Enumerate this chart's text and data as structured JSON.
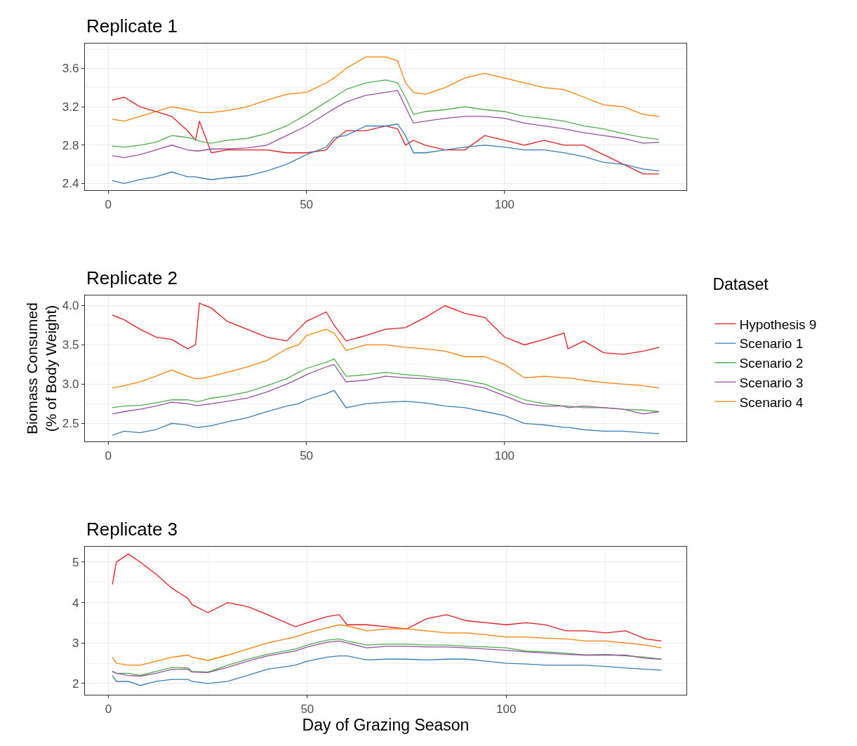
{
  "chart_data": [
    {
      "type": "line",
      "title": "Replicate 1",
      "legend_title": "Dataset",
      "legend": "right",
      "grid": true,
      "x": [
        1,
        4,
        8,
        12,
        16,
        20,
        22,
        23,
        26,
        30,
        35,
        40,
        45,
        50,
        55,
        57,
        60,
        65,
        70,
        73,
        75,
        77,
        80,
        85,
        90,
        95,
        100,
        105,
        110,
        115,
        120,
        125,
        130,
        135,
        139
      ],
      "xlim": [
        -5.9,
        145.9
      ],
      "xticks": [
        0,
        50,
        100
      ],
      "ylim": [
        2.33,
        3.86
      ],
      "yticks": [
        2.4,
        2.8,
        3.2,
        3.6
      ],
      "series": [
        {
          "name": "Hypothesis 9",
          "color": "#e41a1c",
          "values": [
            3.27,
            3.3,
            3.2,
            3.15,
            3.1,
            2.95,
            2.85,
            3.05,
            2.72,
            2.75,
            2.75,
            2.75,
            2.72,
            2.72,
            2.75,
            2.85,
            2.95,
            2.95,
            3.0,
            2.97,
            2.8,
            2.85,
            2.8,
            2.75,
            2.75,
            2.9,
            2.85,
            2.8,
            2.85,
            2.8,
            2.8,
            2.7,
            2.6,
            2.5,
            2.5
          ]
        },
        {
          "name": "Scenario 1",
          "color": "#377eb8",
          "values": [
            2.43,
            2.4,
            2.44,
            2.47,
            2.52,
            2.47,
            2.47,
            2.46,
            2.44,
            2.46,
            2.48,
            2.53,
            2.6,
            2.7,
            2.78,
            2.88,
            2.9,
            3.0,
            3.0,
            3.02,
            2.9,
            2.72,
            2.72,
            2.75,
            2.78,
            2.8,
            2.78,
            2.75,
            2.75,
            2.72,
            2.68,
            2.62,
            2.6,
            2.55,
            2.53
          ]
        },
        {
          "name": "Scenario 2",
          "color": "#4daf4a",
          "values": [
            2.79,
            2.78,
            2.8,
            2.83,
            2.9,
            2.88,
            2.86,
            2.84,
            2.82,
            2.85,
            2.87,
            2.92,
            3.0,
            3.12,
            3.25,
            3.3,
            3.38,
            3.45,
            3.48,
            3.45,
            3.3,
            3.12,
            3.15,
            3.17,
            3.2,
            3.17,
            3.15,
            3.1,
            3.08,
            3.05,
            3.0,
            2.97,
            2.92,
            2.88,
            2.86
          ]
        },
        {
          "name": "Scenario 3",
          "color": "#984ea3",
          "values": [
            2.69,
            2.67,
            2.7,
            2.75,
            2.8,
            2.75,
            2.74,
            2.74,
            2.76,
            2.76,
            2.77,
            2.8,
            2.9,
            3.0,
            3.13,
            3.18,
            3.25,
            3.32,
            3.35,
            3.37,
            3.2,
            3.03,
            3.05,
            3.08,
            3.1,
            3.1,
            3.08,
            3.03,
            3.0,
            2.97,
            2.93,
            2.9,
            2.87,
            2.82,
            2.83
          ]
        },
        {
          "name": "Scenario 4",
          "color": "#ff7f00",
          "values": [
            3.07,
            3.05,
            3.1,
            3.15,
            3.2,
            3.17,
            3.15,
            3.14,
            3.14,
            3.16,
            3.2,
            3.27,
            3.33,
            3.35,
            3.45,
            3.5,
            3.6,
            3.72,
            3.72,
            3.68,
            3.45,
            3.35,
            3.33,
            3.4,
            3.5,
            3.55,
            3.5,
            3.45,
            3.4,
            3.38,
            3.3,
            3.22,
            3.2,
            3.12,
            3.1
          ]
        }
      ]
    },
    {
      "type": "line",
      "title": "Replicate 2",
      "ylabel": "Biomass Consumed\n(% of Body Weight)",
      "legend": "right",
      "grid": true,
      "x": [
        1,
        4,
        8,
        12,
        16,
        20,
        22,
        23,
        26,
        30,
        35,
        40,
        45,
        48,
        50,
        55,
        57,
        60,
        65,
        70,
        75,
        80,
        85,
        90,
        95,
        100,
        105,
        110,
        115,
        116,
        120,
        125,
        130,
        135,
        139
      ],
      "xlim": [
        -5.9,
        145.9
      ],
      "xticks": [
        0,
        50,
        100
      ],
      "ylim": [
        2.27,
        4.13
      ],
      "yticks": [
        2.5,
        {
          "value": 3,
          "label": "3.0"
        },
        3.5,
        {
          "value": 4,
          "label": "4.0"
        }
      ],
      "series": [
        {
          "name": "Hypothesis 9",
          "color": "#e41a1c",
          "values": [
            3.88,
            3.82,
            3.7,
            3.6,
            3.57,
            3.45,
            3.5,
            4.03,
            3.97,
            3.8,
            3.7,
            3.6,
            3.55,
            3.7,
            3.8,
            3.92,
            3.75,
            3.55,
            3.62,
            3.7,
            3.72,
            3.85,
            4.0,
            3.9,
            3.85,
            3.6,
            3.5,
            3.57,
            3.65,
            3.45,
            3.55,
            3.4,
            3.38,
            3.42,
            3.47
          ]
        },
        {
          "name": "Scenario 1",
          "color": "#377eb8",
          "values": [
            2.35,
            2.4,
            2.38,
            2.42,
            2.5,
            2.48,
            2.45,
            2.45,
            2.47,
            2.52,
            2.57,
            2.65,
            2.72,
            2.75,
            2.8,
            2.88,
            2.92,
            2.7,
            2.75,
            2.77,
            2.78,
            2.76,
            2.72,
            2.7,
            2.65,
            2.6,
            2.5,
            2.48,
            2.45,
            2.45,
            2.42,
            2.4,
            2.4,
            2.38,
            2.37
          ]
        },
        {
          "name": "Scenario 2",
          "color": "#4daf4a",
          "values": [
            2.7,
            2.72,
            2.73,
            2.76,
            2.8,
            2.8,
            2.78,
            2.78,
            2.82,
            2.85,
            2.9,
            2.98,
            3.07,
            3.15,
            3.2,
            3.28,
            3.32,
            3.1,
            3.12,
            3.15,
            3.12,
            3.1,
            3.07,
            3.05,
            3.0,
            2.9,
            2.8,
            2.75,
            2.72,
            2.72,
            2.7,
            2.7,
            2.68,
            2.67,
            2.65
          ]
        },
        {
          "name": "Scenario 3",
          "color": "#984ea3",
          "values": [
            2.62,
            2.65,
            2.68,
            2.72,
            2.77,
            2.75,
            2.73,
            2.73,
            2.75,
            2.78,
            2.82,
            2.9,
            3.0,
            3.07,
            3.12,
            3.22,
            3.25,
            3.03,
            3.05,
            3.1,
            3.08,
            3.07,
            3.05,
            3.0,
            2.95,
            2.85,
            2.75,
            2.72,
            2.72,
            2.7,
            2.72,
            2.7,
            2.68,
            2.62,
            2.65
          ]
        },
        {
          "name": "Scenario 4",
          "color": "#ff7f00",
          "values": [
            2.95,
            2.98,
            3.03,
            3.1,
            3.18,
            3.1,
            3.07,
            3.07,
            3.1,
            3.15,
            3.22,
            3.3,
            3.45,
            3.5,
            3.62,
            3.7,
            3.65,
            3.43,
            3.5,
            3.5,
            3.47,
            3.45,
            3.42,
            3.35,
            3.35,
            3.25,
            3.08,
            3.1,
            3.08,
            3.08,
            3.05,
            3.02,
            3.0,
            2.98,
            2.95
          ]
        }
      ]
    },
    {
      "type": "line",
      "title": "Replicate 3",
      "xlabel": "Day of Grazing Season",
      "legend": "right",
      "grid": true,
      "x": [
        1,
        2,
        5,
        8,
        12,
        16,
        20,
        21,
        25,
        30,
        35,
        40,
        47,
        50,
        55,
        58,
        60,
        65,
        70,
        75,
        80,
        85,
        90,
        95,
        100,
        105,
        110,
        115,
        120,
        125,
        130,
        135,
        139
      ],
      "xlim": [
        -5.9,
        145.3
      ],
      "xticks": [
        0,
        50,
        100
      ],
      "ylim": [
        1.72,
        5.38
      ],
      "yticks": [
        2,
        3,
        4,
        5
      ],
      "series": [
        {
          "name": "Hypothesis 9",
          "color": "#e41a1c",
          "values": [
            4.45,
            5.0,
            5.2,
            5.0,
            4.7,
            4.35,
            4.1,
            3.95,
            3.75,
            4.0,
            3.9,
            3.7,
            3.4,
            3.5,
            3.65,
            3.7,
            3.45,
            3.45,
            3.4,
            3.35,
            3.6,
            3.7,
            3.55,
            3.5,
            3.45,
            3.5,
            3.45,
            3.3,
            3.3,
            3.25,
            3.3,
            3.1,
            3.05
          ]
        },
        {
          "name": "Scenario 1",
          "color": "#377eb8",
          "values": [
            2.2,
            2.05,
            2.05,
            1.95,
            2.05,
            2.1,
            2.1,
            2.05,
            2.0,
            2.05,
            2.2,
            2.35,
            2.45,
            2.55,
            2.65,
            2.68,
            2.68,
            2.58,
            2.6,
            2.6,
            2.58,
            2.6,
            2.6,
            2.55,
            2.5,
            2.48,
            2.45,
            2.45,
            2.45,
            2.42,
            2.38,
            2.35,
            2.33
          ]
        },
        {
          "name": "Scenario 2",
          "color": "#4daf4a",
          "values": [
            2.3,
            2.25,
            2.25,
            2.2,
            2.3,
            2.4,
            2.38,
            2.3,
            2.28,
            2.45,
            2.6,
            2.72,
            2.85,
            2.95,
            3.07,
            3.1,
            3.05,
            2.95,
            2.97,
            2.97,
            2.95,
            2.95,
            2.92,
            2.9,
            2.88,
            2.8,
            2.78,
            2.75,
            2.7,
            2.72,
            2.68,
            2.65,
            2.6
          ]
        },
        {
          "name": "Scenario 3",
          "color": "#984ea3",
          "values": [
            2.3,
            2.25,
            2.2,
            2.18,
            2.25,
            2.35,
            2.35,
            2.28,
            2.27,
            2.4,
            2.55,
            2.68,
            2.8,
            2.9,
            3.02,
            3.05,
            3.0,
            2.88,
            2.92,
            2.92,
            2.9,
            2.9,
            2.88,
            2.85,
            2.82,
            2.78,
            2.75,
            2.72,
            2.7,
            2.7,
            2.7,
            2.62,
            2.6
          ]
        },
        {
          "name": "Scenario 4",
          "color": "#ff7f00",
          "values": [
            2.65,
            2.5,
            2.45,
            2.45,
            2.55,
            2.65,
            2.7,
            2.65,
            2.57,
            2.7,
            2.85,
            3.0,
            3.15,
            3.25,
            3.38,
            3.45,
            3.42,
            3.3,
            3.35,
            3.35,
            3.3,
            3.25,
            3.25,
            3.2,
            3.15,
            3.15,
            3.12,
            3.1,
            3.05,
            3.05,
            3.0,
            2.95,
            2.88
          ]
        }
      ]
    }
  ]
}
